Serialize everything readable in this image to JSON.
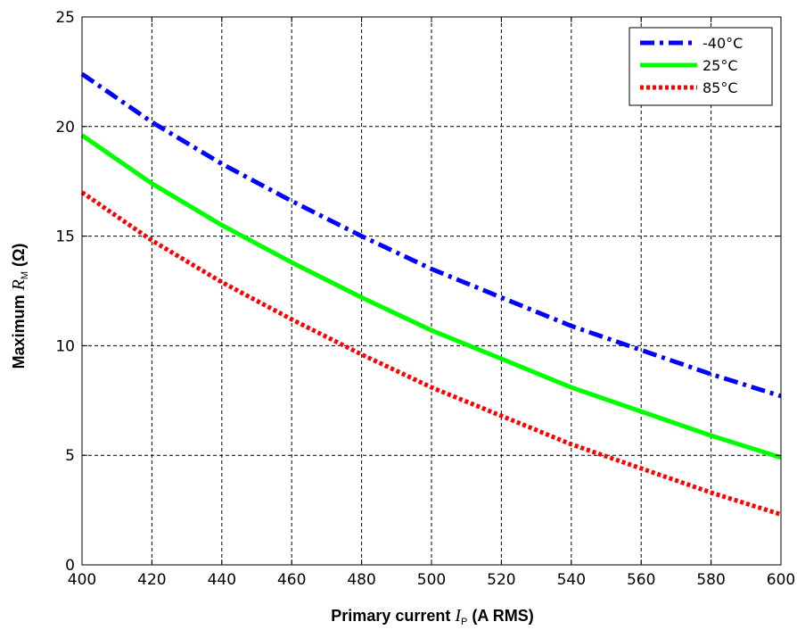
{
  "chart_data": {
    "type": "line",
    "title": "",
    "xlabel": {
      "prefix": "Primary current ",
      "symbol": "I",
      "subscript": "P",
      "suffix": " (A RMS)"
    },
    "ylabel": {
      "prefix": "Maximum  ",
      "symbol": "R",
      "subscript": "M",
      "suffix": " (Ω)"
    },
    "xlim": [
      400,
      600
    ],
    "ylim": [
      0,
      25
    ],
    "xticks": [
      400,
      420,
      440,
      460,
      480,
      500,
      520,
      540,
      560,
      580,
      600
    ],
    "yticks": [
      0,
      5,
      10,
      15,
      20,
      25
    ],
    "grid": true,
    "legend_position": "top-right",
    "x": [
      400,
      420,
      440,
      460,
      480,
      500,
      520,
      540,
      560,
      580,
      600
    ],
    "series": [
      {
        "name": "-40°C",
        "color": "#0000ff",
        "style": "dash-dot",
        "values": [
          22.4,
          20.2,
          18.3,
          16.6,
          15.0,
          13.5,
          12.2,
          10.9,
          9.8,
          8.7,
          7.7
        ]
      },
      {
        "name": "25°C",
        "color": "#00ff00",
        "style": "solid",
        "values": [
          19.6,
          17.4,
          15.5,
          13.8,
          12.2,
          10.7,
          9.4,
          8.1,
          7.0,
          5.9,
          4.9
        ]
      },
      {
        "name": "85°C",
        "color": "#ff0000",
        "style": "dotted",
        "values": [
          17.0,
          14.8,
          12.9,
          11.2,
          9.6,
          8.1,
          6.8,
          5.5,
          4.4,
          3.3,
          2.3
        ]
      }
    ]
  }
}
